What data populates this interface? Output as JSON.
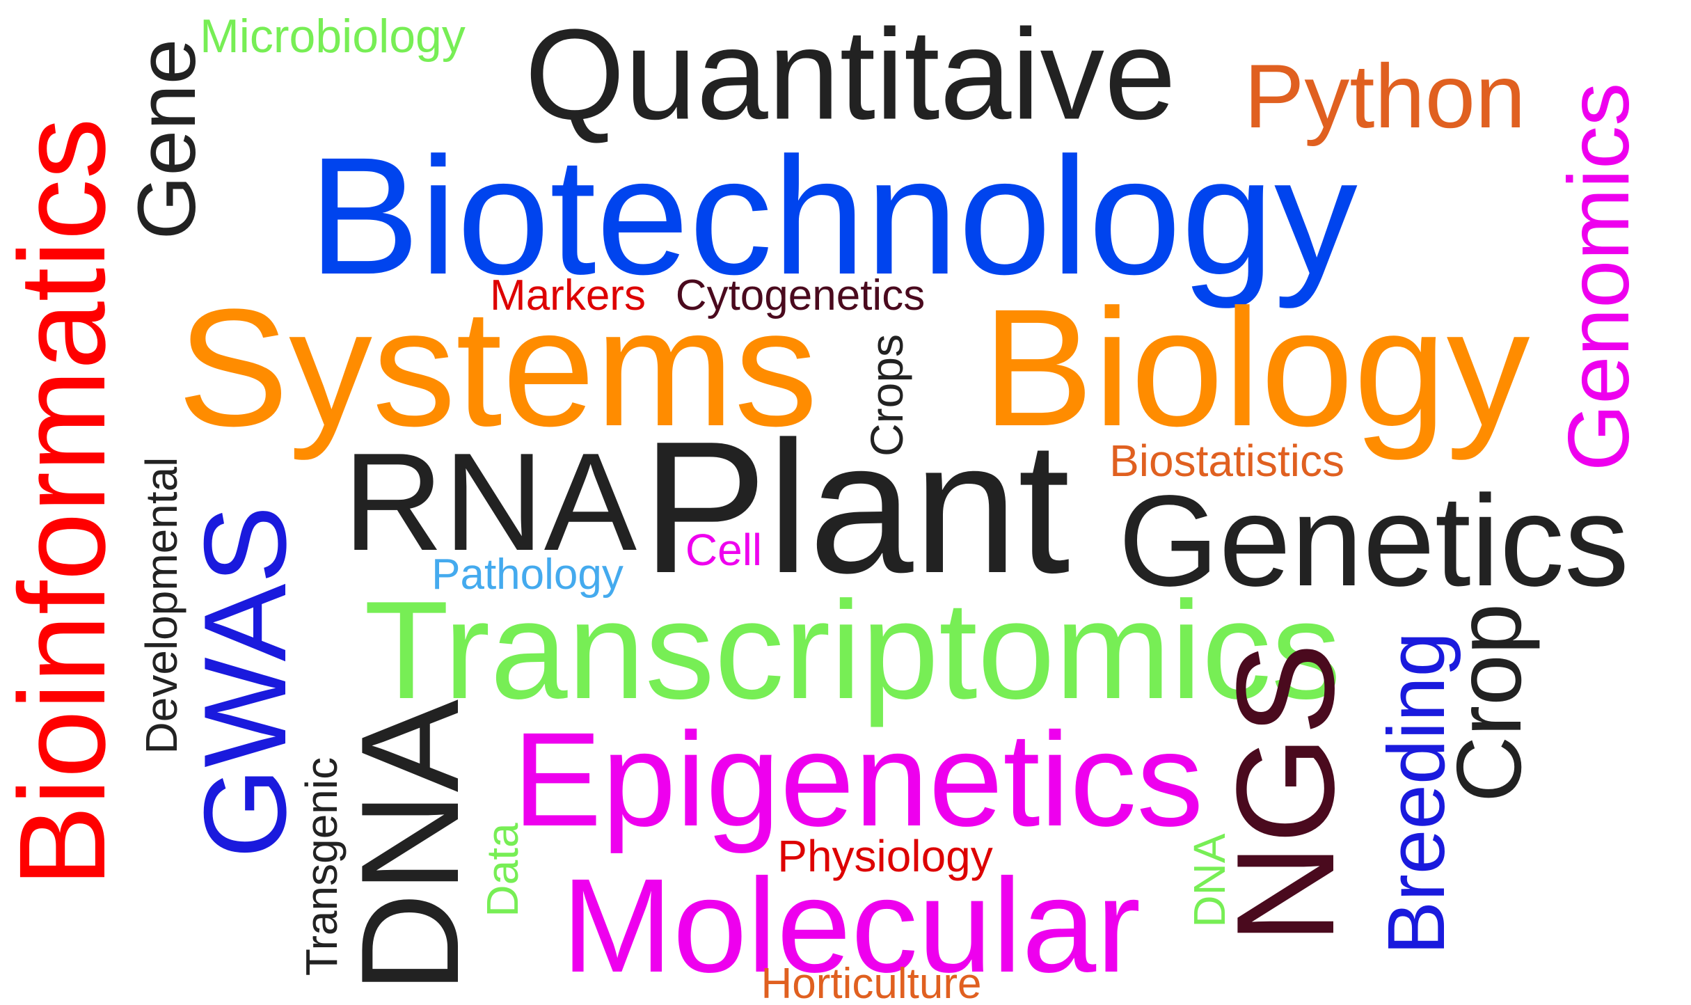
{
  "words": {
    "bioinformatics": "Bioinformatics",
    "gene": "Gene",
    "microbiology": "Microbiology",
    "quantitaive": "Quantitaive",
    "python": "Python",
    "genomics": "Genomics",
    "biotechnology": "Biotechnology",
    "markers": "Markers",
    "cytogenetics": "Cytogenetics",
    "systems": "Systems",
    "crops": "Crops",
    "biology": "Biology",
    "biostatistics": "Biostatistics",
    "developmental": "Developmental",
    "gwas": "GWAS",
    "rna": "RNA",
    "plant": "Plant",
    "cell": "Cell",
    "genetics": "Genetics",
    "pathology": "Pathology",
    "transcriptomics": "Transcriptomics",
    "crop": "Crop",
    "breeding": "Breeding",
    "ngs": "NGS",
    "transgenic": "Transgenic",
    "dna_large": "DNA",
    "epigenetics": "Epigenetics",
    "data": "Data",
    "physiology": "Physiology",
    "molecular": "Molecular",
    "dna_small": "DNA",
    "horticulture": "Horticulture"
  },
  "colors": {
    "red": "#ff0000",
    "dark": "#222222",
    "light_green": "#77ee55",
    "orange_red": "#e06020",
    "magenta": "#ee00ee",
    "blue": "#0044ee",
    "dark_red": "#dd0000",
    "maroon": "#4a0a1e",
    "orange": "#ff8c00",
    "royal_blue": "#1a1add",
    "sky_blue": "#44aaee"
  }
}
